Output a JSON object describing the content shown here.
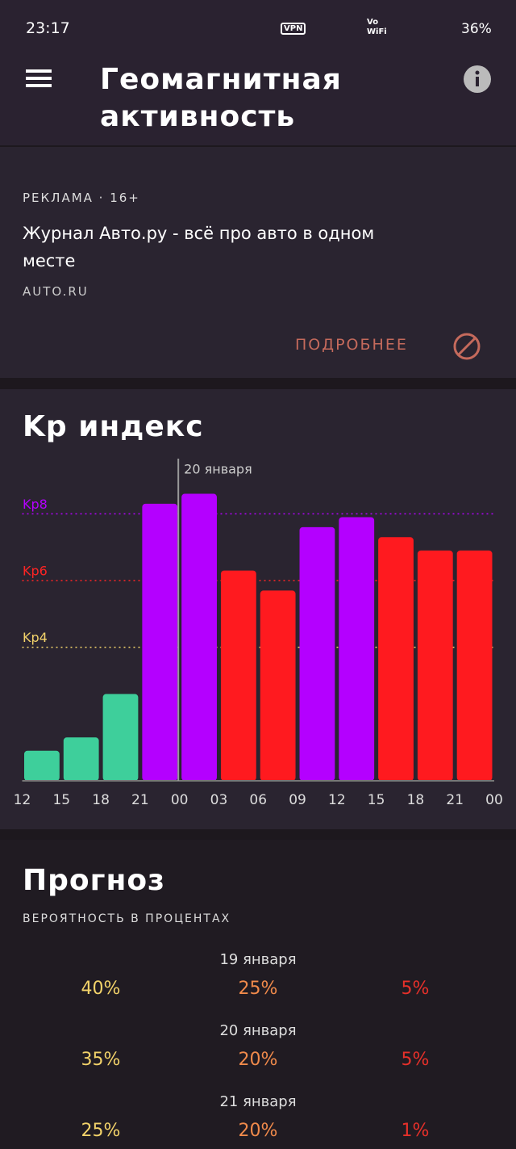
{
  "status_bar": {
    "time": "23:17",
    "vpn": "VPN",
    "wifi_call": "Vo WiFi",
    "battery": "36%"
  },
  "header": {
    "title": "Геомагнитная активность"
  },
  "ad": {
    "label": "РЕКЛАМА · 16+",
    "text": "Журнал Авто.ру - всё про авто в одном месте",
    "domain": "AUTO.RU",
    "button": "ПОДРОБНЕЕ"
  },
  "chart_data": {
    "type": "bar",
    "title": "Kp индекс",
    "categories": [
      null,
      null,
      null,
      null,
      null,
      null,
      null,
      null,
      null,
      null,
      null,
      null
    ],
    "values": [
      0.9,
      1.3,
      2.6,
      8.3,
      8.6,
      6.3,
      5.7,
      7.6,
      7.9,
      7.3,
      6.9,
      6.9
    ],
    "colors": [
      "#3ecf9b",
      "#3ecf9b",
      "#3ecf9b",
      "#b400ff",
      "#b400ff",
      "#ff1a1f",
      "#ff1a1f",
      "#b400ff",
      "#b400ff",
      "#ff1a1f",
      "#ff1a1f",
      "#ff1a1f"
    ],
    "x_labels": [
      "12",
      "15",
      "18",
      "21",
      "00",
      "03",
      "06",
      "09",
      "12",
      "15",
      "18",
      "21",
      "00"
    ],
    "ylim": [
      0,
      9
    ],
    "reference_lines": [
      {
        "value": 8,
        "label": "Kp8",
        "color": "#b400ff"
      },
      {
        "value": 6,
        "label": "Kp6",
        "color": "#ff2424"
      },
      {
        "value": 4,
        "label": "Kp4",
        "color": "#f3d36a"
      }
    ],
    "annotation": "20 января"
  },
  "forecast": {
    "title": "Прогноз",
    "subtitle": "ВЕРОЯТНОСТЬ В ПРОЦЕНТАХ",
    "rows": [
      {
        "date": "19 января",
        "values": [
          "40%",
          "25%",
          "5%"
        ]
      },
      {
        "date": "20 января",
        "values": [
          "35%",
          "20%",
          "5%"
        ]
      },
      {
        "date": "21 января",
        "values": [
          "25%",
          "20%",
          "1%"
        ]
      }
    ]
  }
}
